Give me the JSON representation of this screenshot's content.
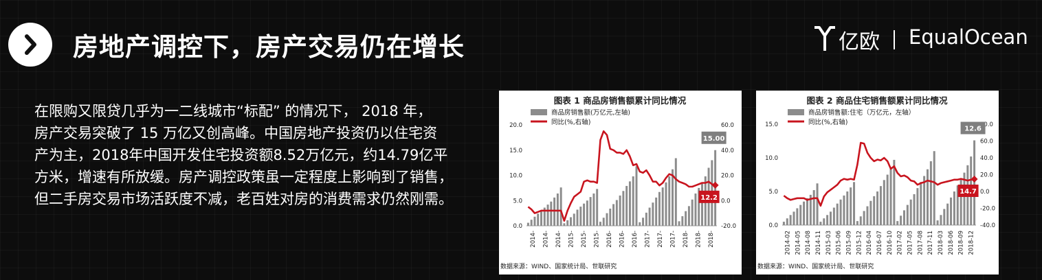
{
  "header": {
    "title": "房地产调控下，房产交易仍在增长",
    "logo_cn": "亿欧",
    "logo_en": "EqualOcean"
  },
  "body": {
    "lines": [
      "在限购又限贷几乎为一二线城市“标配” 的情况下， 2018 年，",
      "房产交易突破了 15 万亿又创高峰。中国房地产投资仍以住宅资",
      "产为主，2018年中国开发住宅投资额8.52万亿元，约14.79亿平",
      "方米，增速有所放缓。房产调控政策虽一定程度上影响到了销售，",
      "但二手房交易市场活跃度不减，老百姓对房的消费需求仍然刚需。"
    ]
  },
  "colors": {
    "bar": "#8c8c8c",
    "line": "#c8141e",
    "text": "#222222"
  },
  "chart_data": [
    {
      "type": "bar+line",
      "title": "图表 1    商品房销售额累计同比情况",
      "source": "数据来源：WIND、国家统计局、世联研究",
      "legend": [
        {
          "name": "商品房销售额(万亿元,左轴)",
          "kind": "bar"
        },
        {
          "name": "同比(%,右轴)",
          "kind": "line"
        }
      ],
      "x_tick_labels": [
        "2014-",
        "2014-",
        "2014-",
        "2015-",
        "2015-",
        "2015-",
        "2016-",
        "2016-",
        "2016-",
        "2017-",
        "2017-",
        "2017-",
        "2018-",
        "2018-",
        "2018-"
      ],
      "y_left": {
        "ticks": [
          "0.0",
          "5.0",
          "10.0",
          "15.0",
          "20.0"
        ],
        "range": [
          0,
          20
        ]
      },
      "y_right": {
        "ticks": [
          "-20.0",
          "0.0",
          "20.0",
          "40.0",
          "60.0"
        ],
        "range": [
          -20,
          60
        ]
      },
      "bars": [
        0.6,
        1.2,
        1.8,
        2.4,
        3.0,
        3.6,
        4.2,
        4.8,
        5.6,
        6.4,
        7.6,
        0.5,
        1.1,
        1.7,
        2.4,
        3.2,
        3.8,
        4.4,
        5.0,
        5.7,
        6.4,
        7.3,
        0.8,
        1.6,
        2.5,
        3.4,
        4.3,
        5.1,
        6.0,
        6.9,
        7.9,
        8.8,
        9.8,
        11.8,
        0.7,
        1.6,
        2.6,
        3.6,
        4.6,
        5.6,
        6.7,
        7.6,
        8.6,
        9.8,
        11.2,
        13.4,
        0.9,
        1.9,
        2.9,
        3.9,
        5.2,
        6.4,
        7.5,
        8.5,
        9.8,
        11.5,
        13.0,
        15.0
      ],
      "line": [
        -5,
        -7,
        -10,
        -9,
        -8,
        -8,
        -8,
        -8,
        -8,
        -8,
        -8,
        -16,
        -8,
        -2,
        3,
        5,
        7,
        15,
        16,
        15,
        15,
        14,
        48,
        55,
        52,
        41,
        40,
        38,
        38,
        37,
        40,
        35,
        28,
        29,
        23,
        22,
        24,
        20,
        15,
        15,
        12,
        14,
        18,
        21,
        20,
        17,
        15,
        14,
        13,
        11,
        11,
        12,
        13,
        14,
        14,
        15,
        13,
        12.2
      ],
      "value_labels": [
        {
          "series": "bar",
          "text": "15.00"
        },
        {
          "series": "line",
          "text": "12.2"
        }
      ]
    },
    {
      "type": "bar+line",
      "title": "图表 2    商品住宅销售额累计同比情况",
      "source": "数据来源：WIND、国家统计局、世联研究",
      "legend": [
        {
          "name": "商品房销售额:住宅（万亿元，左轴）",
          "kind": "bar"
        },
        {
          "name": "同比(%,右轴)",
          "kind": "line"
        }
      ],
      "x_tick_labels": [
        "2014-02",
        "2014-05",
        "2014-08",
        "2014-11",
        "2015-03",
        "2015-06",
        "2015-09",
        "2015-12",
        "2016-04",
        "2016-07",
        "2016-10",
        "2017-02",
        "2017-05",
        "2017-08",
        "2017-11",
        "2018-03",
        "2018-06",
        "2018-09",
        "2018-12"
      ],
      "y_left": {
        "ticks": [
          "0.0",
          "5.0",
          "10.0",
          "15.0"
        ],
        "range": [
          0,
          15
        ]
      },
      "y_right": {
        "ticks": [
          "-40.0",
          "-20.0",
          "0.0",
          "20.0",
          "40.0",
          "60.0",
          "80.0"
        ],
        "range": [
          -40,
          80
        ]
      },
      "bars": [
        0.5,
        1.0,
        1.5,
        2.0,
        2.5,
        3.0,
        3.5,
        4.0,
        4.5,
        5.2,
        6.2,
        0.5,
        1.0,
        1.5,
        2.0,
        2.6,
        3.2,
        3.8,
        4.4,
        5.0,
        5.6,
        6.4,
        0.6,
        1.3,
        2.1,
        2.8,
        3.6,
        4.3,
        5.0,
        5.8,
        6.7,
        7.5,
        8.4,
        9.7,
        0.6,
        1.4,
        2.2,
        3.0,
        3.8,
        4.6,
        5.5,
        6.4,
        7.3,
        8.3,
        9.5,
        11.0,
        0.7,
        1.5,
        2.4,
        3.2,
        4.1,
        5.0,
        5.9,
        6.8,
        7.8,
        8.9,
        10.2,
        12.6
      ],
      "line": [
        -5,
        -8,
        -10,
        -9,
        -8,
        -8,
        -8,
        -10,
        -9,
        -8,
        -8,
        -17,
        -6,
        -1,
        2,
        5,
        8,
        13,
        15,
        14,
        15,
        14,
        32,
        58,
        57,
        46,
        40,
        36,
        38,
        37,
        40,
        36,
        27,
        30,
        22,
        18,
        19,
        17,
        13,
        12,
        8,
        10,
        11,
        13,
        12,
        11,
        8,
        10,
        11,
        12,
        13,
        14,
        14,
        15,
        14,
        13,
        14,
        14.7
      ],
      "value_labels": [
        {
          "series": "bar",
          "text": "12.6"
        },
        {
          "series": "line",
          "text": "14.7"
        }
      ]
    }
  ]
}
